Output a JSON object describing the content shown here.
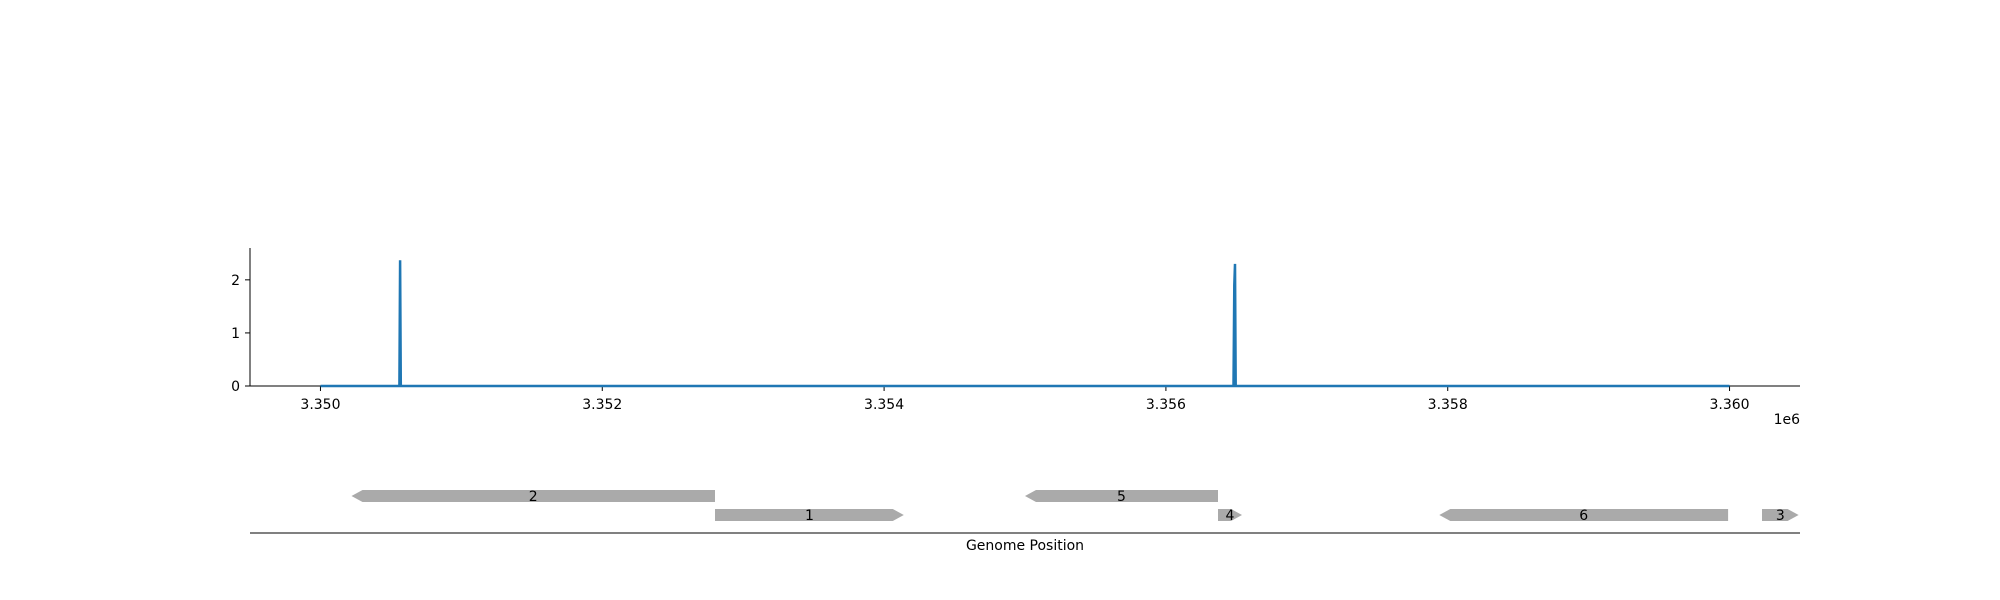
{
  "chart_data": [
    {
      "type": "line",
      "title": "",
      "xlabel": "",
      "ylabel": "",
      "x_offset_label": "1e6",
      "xlim": [
        3349500,
        3360500
      ],
      "ylim": [
        0,
        2.6
      ],
      "x_ticks": [
        3350000,
        3352000,
        3354000,
        3356000,
        3358000,
        3360000
      ],
      "x_tick_labels": [
        "3.350",
        "3.352",
        "3.354",
        "3.356",
        "3.358",
        "3.360"
      ],
      "y_ticks": [
        0,
        1,
        2
      ],
      "y_tick_labels": [
        "0",
        "1",
        "2"
      ],
      "grid": false,
      "color": "#1f77b4",
      "series": [
        {
          "x": [
            3350000,
            3350560,
            3350565,
            3350570,
            3356480,
            3356485,
            3356490,
            3356495,
            3356500,
            3360000
          ],
          "y": [
            0,
            0,
            2.37,
            0,
            0,
            1.9,
            2.3,
            0,
            0,
            0
          ]
        }
      ]
    },
    {
      "type": "gene_track",
      "title": "",
      "xlabel": "Genome Position",
      "xlim": [
        3349500,
        3360500
      ],
      "color": "#aaaaaa",
      "genes": [
        {
          "label": "2",
          "start": 3350220,
          "end": 3352800,
          "strand": "-",
          "row": 1
        },
        {
          "label": "1",
          "start": 3352800,
          "end": 3354140,
          "strand": "+",
          "row": 0
        },
        {
          "label": "5",
          "start": 3355000,
          "end": 3356370,
          "strand": "-",
          "row": 1
        },
        {
          "label": "4",
          "start": 3356370,
          "end": 3356540,
          "strand": "+",
          "row": 0
        },
        {
          "label": "6",
          "start": 3357940,
          "end": 3359990,
          "strand": "-",
          "row": 0
        },
        {
          "label": "3",
          "start": 3360230,
          "end": 3360490,
          "strand": "+",
          "row": 0
        }
      ]
    }
  ]
}
